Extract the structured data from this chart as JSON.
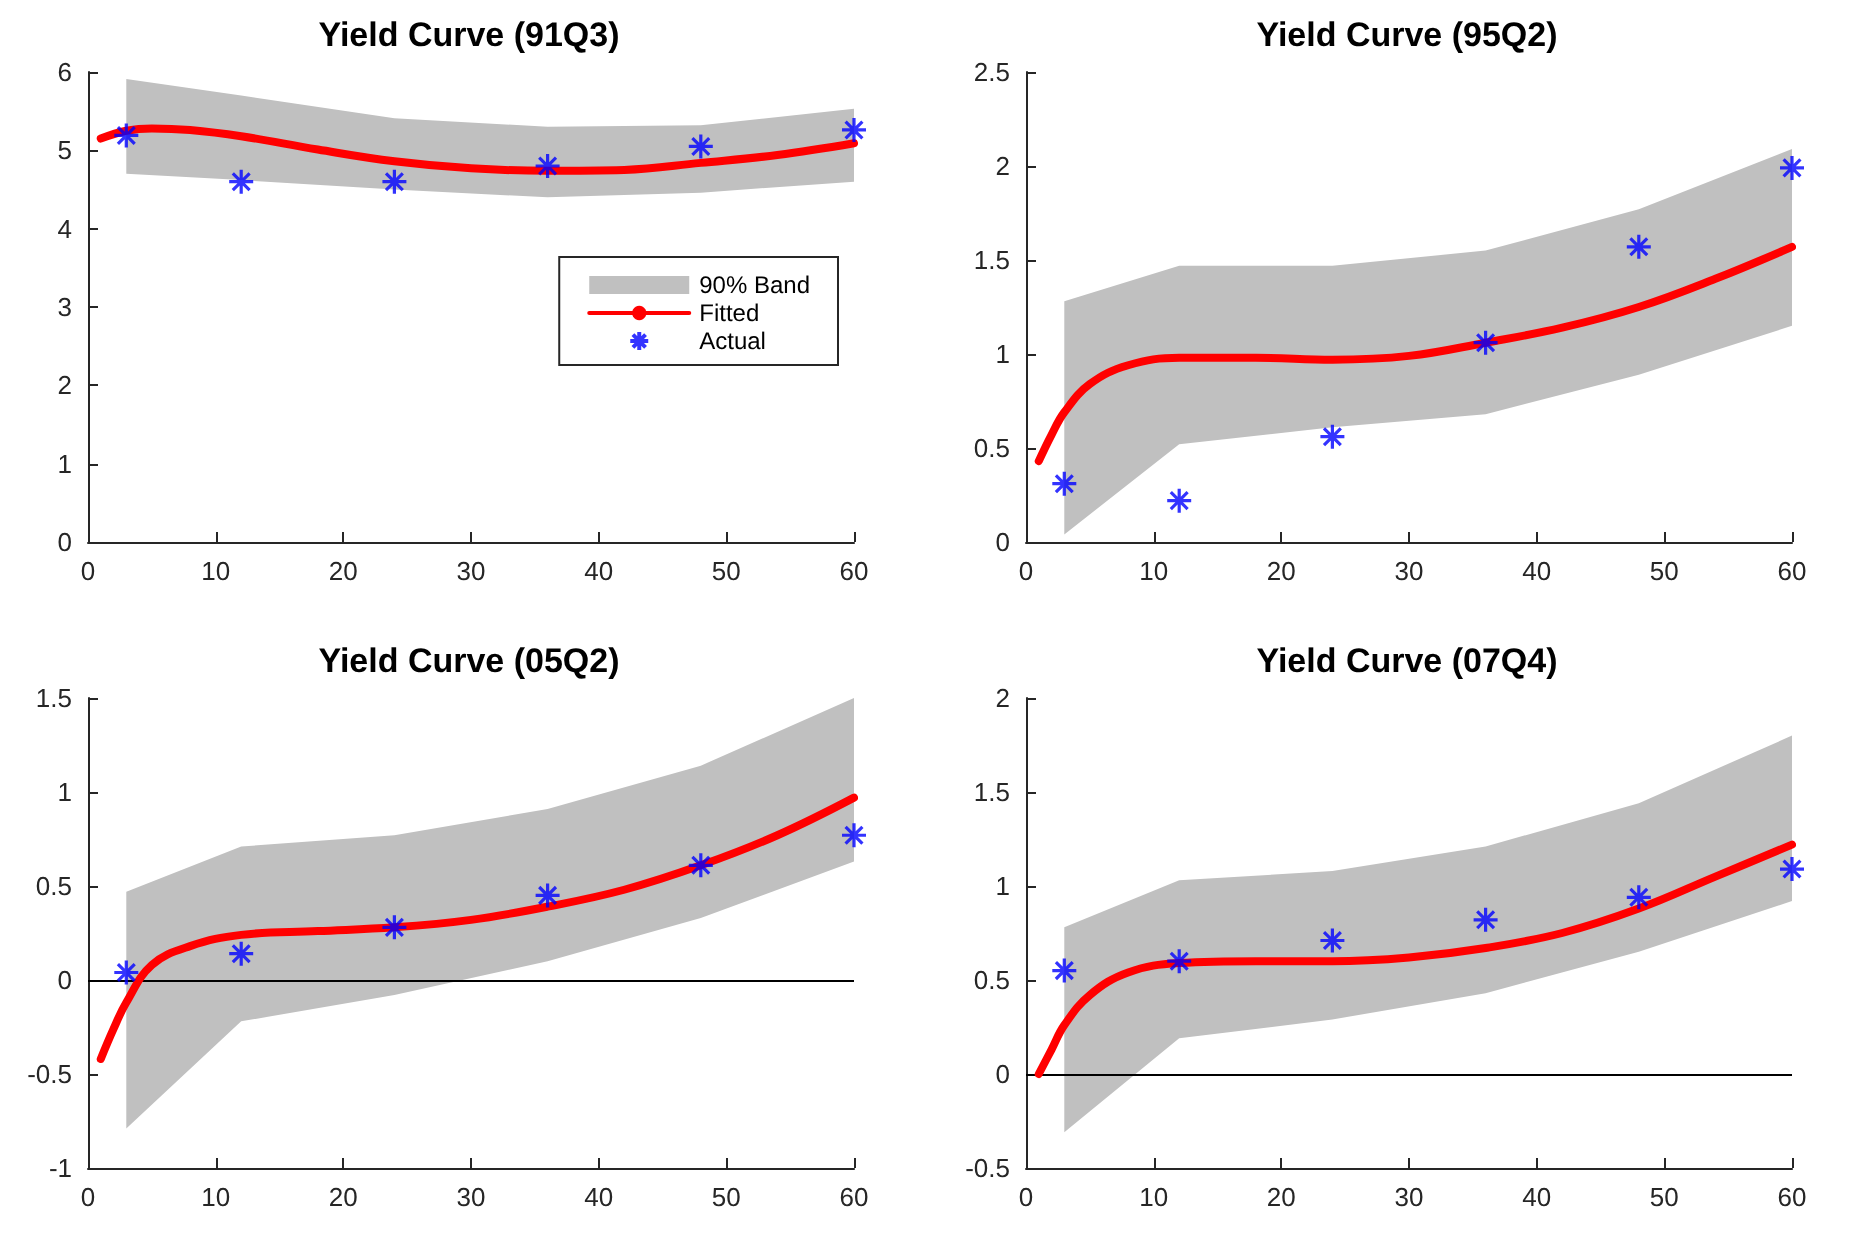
{
  "chart_data": [
    {
      "type": "line",
      "title": "Yield Curve (91Q3)",
      "xlim": [
        0,
        60
      ],
      "xticks": [
        0,
        10,
        20,
        30,
        40,
        50,
        60
      ],
      "ylim": [
        0,
        6
      ],
      "yticks": [
        0,
        1,
        2,
        3,
        4,
        5,
        6
      ],
      "legend": "right",
      "series": [
        {
          "name": "90% Band",
          "type": "area",
          "color": "#c0c0c0",
          "x": [
            3,
            12,
            24,
            36,
            48,
            60
          ],
          "values": [
            null,
            null,
            null,
            null,
            null,
            null
          ],
          "lower": [
            4.7,
            4.62,
            4.5,
            4.4,
            4.46,
            4.6
          ],
          "upper": [
            5.91,
            5.7,
            5.41,
            5.3,
            5.32,
            5.53
          ]
        },
        {
          "name": "Fitted",
          "color": "#ff0000",
          "marker": "none",
          "line_style": "solid",
          "x": [
            1,
            3,
            5,
            8,
            12,
            18,
            24,
            30,
            36,
            42,
            48,
            54,
            60
          ],
          "values": [
            5.15,
            5.25,
            5.28,
            5.26,
            5.18,
            5.01,
            4.86,
            4.77,
            4.74,
            4.75,
            4.84,
            4.94,
            5.09
          ]
        },
        {
          "name": "Actual",
          "type": "scatter",
          "color": "#0000ff",
          "marker": "cross",
          "x": [
            3,
            12,
            24,
            36,
            48,
            60
          ],
          "values": [
            5.19,
            4.6,
            4.6,
            4.8,
            5.05,
            5.26
          ]
        }
      ]
    },
    {
      "type": "line",
      "title": "Yield Curve (95Q2)",
      "xlim": [
        0,
        60
      ],
      "xticks": [
        0,
        10,
        20,
        30,
        40,
        50,
        60
      ],
      "ylim": [
        0,
        2.5
      ],
      "yticks": [
        0,
        0.5,
        1,
        1.5,
        2,
        2.5
      ],
      "legend": false,
      "series": [
        {
          "type": "area",
          "color": "#c0c0c0",
          "x": [
            3,
            12,
            24,
            36,
            48,
            60
          ],
          "values": [
            null,
            null,
            null,
            null,
            null,
            null
          ],
          "lower": [
            0.04,
            0.52,
            0.61,
            0.68,
            0.89,
            1.15
          ],
          "upper": [
            1.28,
            1.47,
            1.47,
            1.55,
            1.77,
            2.09
          ]
        },
        {
          "color": "#ff0000",
          "marker": "none",
          "line_style": "solid",
          "x": [
            1,
            2,
            3,
            5,
            8,
            12,
            18,
            24,
            30,
            36,
            42,
            48,
            54,
            60
          ],
          "values": [
            0.43,
            0.57,
            0.69,
            0.84,
            0.94,
            0.98,
            0.98,
            0.97,
            0.99,
            1.06,
            1.14,
            1.25,
            1.4,
            1.57
          ]
        },
        {
          "type": "scatter",
          "color": "#0000ff",
          "marker": "cross",
          "x": [
            3,
            12,
            24,
            36,
            48,
            60
          ],
          "values": [
            0.31,
            0.22,
            0.56,
            1.06,
            1.57,
            1.99
          ]
        }
      ]
    },
    {
      "type": "line",
      "title": "Yield Curve (05Q2)",
      "xlim": [
        0,
        60
      ],
      "xticks": [
        0,
        10,
        20,
        30,
        40,
        50,
        60
      ],
      "ylim": [
        -1,
        1.5
      ],
      "yticks": [
        -1,
        -0.5,
        0,
        0.5,
        1,
        1.5
      ],
      "legend": false,
      "ref_lines": [
        {
          "axis": "y",
          "value": 0,
          "color": "#000000"
        }
      ],
      "series": [
        {
          "type": "area",
          "color": "#c0c0c0",
          "x": [
            3,
            12,
            24,
            36,
            48,
            60
          ],
          "values": [
            null,
            null,
            null,
            null,
            null,
            null
          ],
          "lower": [
            -0.79,
            -0.22,
            -0.08,
            0.1,
            0.33,
            0.63
          ],
          "upper": [
            0.47,
            0.71,
            0.77,
            0.91,
            1.14,
            1.5
          ]
        },
        {
          "color": "#ff0000",
          "marker": "none",
          "line_style": "solid",
          "x": [
            1,
            2,
            3,
            5,
            8,
            12,
            18,
            24,
            30,
            36,
            42,
            48,
            54,
            60
          ],
          "values": [
            -0.42,
            -0.26,
            -0.12,
            0.08,
            0.18,
            0.24,
            0.26,
            0.28,
            0.32,
            0.39,
            0.48,
            0.61,
            0.77,
            0.97
          ]
        },
        {
          "type": "scatter",
          "color": "#0000ff",
          "marker": "cross",
          "x": [
            3,
            12,
            24,
            36,
            48,
            60
          ],
          "values": [
            0.04,
            0.14,
            0.28,
            0.45,
            0.61,
            0.77
          ]
        }
      ]
    },
    {
      "type": "line",
      "title": "Yield Curve (07Q4)",
      "xlim": [
        0,
        60
      ],
      "xticks": [
        0,
        10,
        20,
        30,
        40,
        50,
        60
      ],
      "ylim": [
        -0.5,
        2
      ],
      "yticks": [
        -0.5,
        0,
        0.5,
        1,
        1.5,
        2
      ],
      "legend": false,
      "ref_lines": [
        {
          "axis": "y",
          "value": 0,
          "color": "#000000"
        }
      ],
      "series": [
        {
          "type": "area",
          "color": "#c0c0c0",
          "x": [
            3,
            12,
            24,
            36,
            48,
            60
          ],
          "values": [
            null,
            null,
            null,
            null,
            null,
            null
          ],
          "lower": [
            -0.31,
            0.19,
            0.29,
            0.43,
            0.65,
            0.92
          ],
          "upper": [
            0.78,
            1.03,
            1.08,
            1.21,
            1.44,
            1.8
          ]
        },
        {
          "color": "#ff0000",
          "marker": "none",
          "line_style": "solid",
          "x": [
            1,
            2,
            3,
            5,
            8,
            12,
            18,
            24,
            30,
            36,
            42,
            48,
            54,
            60
          ],
          "values": [
            0,
            0.13,
            0.26,
            0.42,
            0.54,
            0.59,
            0.6,
            0.6,
            0.62,
            0.67,
            0.75,
            0.88,
            1.05,
            1.22
          ]
        },
        {
          "type": "scatter",
          "color": "#0000ff",
          "marker": "cross",
          "x": [
            3,
            12,
            24,
            36,
            48,
            60
          ],
          "values": [
            0.55,
            0.6,
            0.71,
            0.82,
            0.94,
            1.09
          ]
        }
      ]
    }
  ]
}
